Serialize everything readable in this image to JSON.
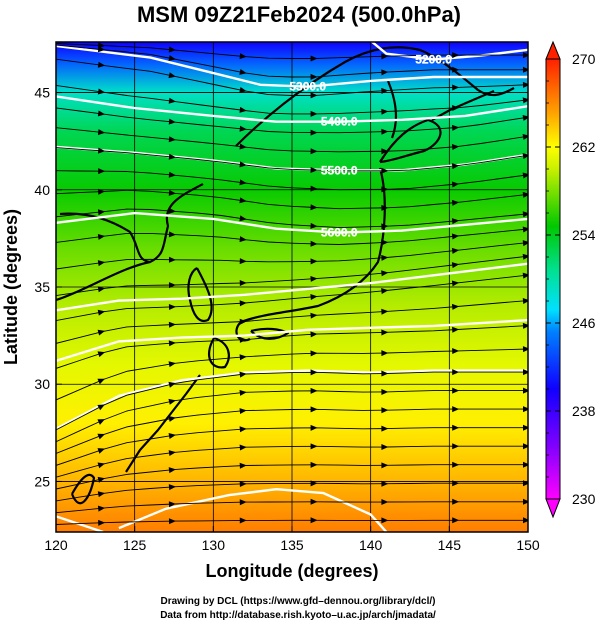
{
  "chart_data": {
    "type": "heatmap",
    "title": "MSM 09Z21Feb2024 (500.0hPa)",
    "xlabel": "Longitude (degrees)",
    "ylabel": "Latitude  (degrees)",
    "xlim": [
      120,
      150
    ],
    "ylim": [
      22.4,
      47.6
    ],
    "xticks": [
      "120",
      "125",
      "130",
      "135",
      "140",
      "145",
      "150"
    ],
    "yticks": [
      "25",
      "30",
      "35",
      "40",
      "45"
    ],
    "colorbar": {
      "range": [
        230,
        270
      ],
      "ticks": [
        "230",
        "238",
        "246",
        "254",
        "262",
        "270"
      ]
    },
    "temperature_field": {
      "units": "K",
      "lat_profile": [
        {
          "lat": 22.4,
          "value": 266.5
        },
        {
          "lat": 25,
          "value": 264.5
        },
        {
          "lat": 28,
          "value": 262.5
        },
        {
          "lat": 31,
          "value": 261.0
        },
        {
          "lat": 34,
          "value": 259.5
        },
        {
          "lat": 37,
          "value": 257.5
        },
        {
          "lat": 40,
          "value": 255.0
        },
        {
          "lat": 43,
          "value": 252.5
        },
        {
          "lat": 45,
          "value": 249.0
        },
        {
          "lat": 46.5,
          "value": 244.0
        },
        {
          "lat": 47.6,
          "value": 240.0
        }
      ]
    },
    "height_contours": [
      {
        "label": "5200.0",
        "points": [
          [
            139.5,
            48.0
          ],
          [
            141,
            47.0
          ],
          [
            144,
            46.7
          ],
          [
            147,
            46.9
          ],
          [
            150,
            47.2
          ]
        ]
      },
      {
        "label": "5300.0",
        "points": [
          [
            120,
            47.4
          ],
          [
            126,
            46.8
          ],
          [
            130,
            46.0
          ],
          [
            133,
            45.4
          ],
          [
            136,
            45.3
          ],
          [
            140,
            45.6
          ],
          [
            144,
            45.8
          ],
          [
            150,
            45.8
          ]
        ]
      },
      {
        "label": "5400.0",
        "points": [
          [
            120,
            44.8
          ],
          [
            125,
            44.2
          ],
          [
            130,
            43.8
          ],
          [
            134,
            43.5
          ],
          [
            138,
            43.5
          ],
          [
            142,
            43.6
          ],
          [
            146,
            43.8
          ],
          [
            150,
            44.3
          ]
        ]
      },
      {
        "label": "5500.0",
        "points": [
          [
            120,
            42.2
          ],
          [
            125,
            41.9
          ],
          [
            130,
            41.5
          ],
          [
            134,
            41.1
          ],
          [
            138,
            41.0
          ],
          [
            142,
            41.0
          ],
          [
            146,
            41.3
          ],
          [
            150,
            41.8
          ]
        ]
      },
      {
        "label": "5600.0",
        "points": [
          [
            120,
            38.3
          ],
          [
            125,
            38.8
          ],
          [
            130,
            38.5
          ],
          [
            134,
            38.0
          ],
          [
            138,
            37.8
          ],
          [
            142,
            37.9
          ],
          [
            146,
            38.2
          ],
          [
            150,
            38.5
          ]
        ]
      },
      {
        "label": "",
        "points": [
          [
            120,
            33.8
          ],
          [
            124,
            34.3
          ],
          [
            128,
            34.4
          ],
          [
            132,
            34.6
          ],
          [
            136,
            34.9
          ],
          [
            140,
            35.2
          ],
          [
            144,
            35.6
          ],
          [
            150,
            36.2
          ]
        ]
      },
      {
        "label": "",
        "points": [
          [
            120,
            31.2
          ],
          [
            124,
            32.2
          ],
          [
            128,
            32.4
          ],
          [
            132,
            32.5
          ],
          [
            136,
            32.8
          ],
          [
            140,
            32.9
          ],
          [
            144,
            33.0
          ],
          [
            150,
            33.3
          ]
        ]
      },
      {
        "label": "",
        "points": [
          [
            120,
            27.7
          ],
          [
            124,
            29.4
          ],
          [
            128,
            30.2
          ],
          [
            132,
            30.6
          ],
          [
            136,
            30.7
          ],
          [
            140,
            30.6
          ],
          [
            144,
            30.7
          ],
          [
            150,
            30.7
          ]
        ]
      },
      {
        "label": "",
        "points": [
          [
            124,
            22.6
          ],
          [
            127,
            23.6
          ],
          [
            131,
            24.3
          ],
          [
            134,
            24.6
          ],
          [
            137,
            24.4
          ],
          [
            140,
            23.3
          ],
          [
            141,
            22.4
          ]
        ]
      },
      {
        "label": "",
        "points": [
          [
            120,
            23.2
          ],
          [
            123,
            22.4
          ]
        ]
      }
    ]
  },
  "credits": {
    "line1": "Drawing by DCL (https://www.gfd–dennou.org/library/dcl/)",
    "line2": "Data from http://database.rish.kyoto–u.ac.jp/arch/jmadata/"
  }
}
